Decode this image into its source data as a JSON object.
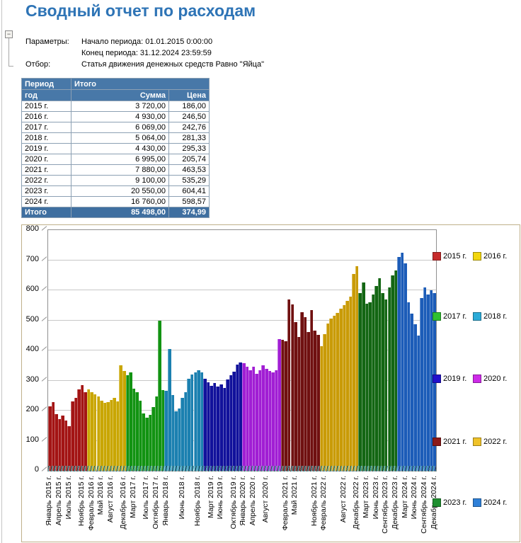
{
  "page": {
    "title": "Сводный отчет по расходам",
    "collapse_glyph": "−"
  },
  "params": {
    "label": "Параметры:",
    "line1": "Начало периода: 01.01.2015 0:00:00",
    "line2": "Конец периода: 31.12.2024 23:59:59",
    "filter_label": "Отбор:",
    "filter_value": "Статья движения денежных средств Равно \"Яйца\""
  },
  "table": {
    "header": {
      "col_period_line1": "Период",
      "col_period_line2": "год",
      "col_total": "Итого",
      "col_sum": "Сумма",
      "col_price": "Цена"
    },
    "rows": [
      [
        "2015 г.",
        "3 720,00",
        "186,00"
      ],
      [
        "2016 г.",
        "4 930,00",
        "246,50"
      ],
      [
        "2017 г.",
        "6 069,00",
        "242,76"
      ],
      [
        "2018 г.",
        "5 064,00",
        "281,33"
      ],
      [
        "2019 г.",
        "4 430,00",
        "295,33"
      ],
      [
        "2020 г.",
        "6 995,00",
        "205,74"
      ],
      [
        "2021 г.",
        "7 880,00",
        "463,53"
      ],
      [
        "2022 г.",
        "9 100,00",
        "535,29"
      ],
      [
        "2023 г.",
        "20 550,00",
        "604,41"
      ],
      [
        "2024 г.",
        "16 760,00",
        "598,57"
      ]
    ],
    "footer": {
      "label": "Итого",
      "sum": "85 498,00",
      "price": "374,99"
    }
  },
  "chart_data": {
    "type": "bar",
    "title": "",
    "xlabel": "",
    "ylabel": "",
    "ylim": [
      0,
      800
    ],
    "yticks": [
      0,
      100,
      200,
      300,
      400,
      500,
      600,
      700,
      800
    ],
    "grid": true,
    "legend_position": "right",
    "series": [
      {
        "name": "2015 г.",
        "color": "#A31414",
        "legend_color": "#C62B2B",
        "values": [
          215,
          228,
          188,
          172,
          184,
          167,
          148,
          230,
          242,
          270,
          285,
          262
        ]
      },
      {
        "name": "2016 г.",
        "color": "#C9A603",
        "legend_color": "#F2D60E",
        "values": [
          270,
          262,
          255,
          248,
          232,
          225,
          228,
          235,
          242,
          230,
          350,
          332
        ]
      },
      {
        "name": "2017 г.",
        "color": "#129312",
        "legend_color": "#30C030",
        "values": [
          318,
          328,
          272,
          262,
          232,
          190,
          176,
          186,
          212,
          246,
          500,
          268
        ]
      },
      {
        "name": "2018 г.",
        "color": "#1B80B0",
        "legend_color": "#2BABD8",
        "values": [
          266,
          405,
          252,
          198,
          208,
          242,
          262,
          305,
          320,
          327,
          334,
          327
        ]
      },
      {
        "name": "2019 г.",
        "color": "#11119B",
        "legend_color": "#2211CC",
        "values": [
          306,
          295,
          283,
          292,
          280,
          288,
          276,
          303,
          318,
          330,
          352,
          360
        ]
      },
      {
        "name": "2020 г.",
        "color": "#A11ED4",
        "legend_color": "#CE2BE8",
        "values": [
          358,
          345,
          335,
          345,
          322,
          335,
          350,
          340,
          332,
          328,
          335,
          438
        ]
      },
      {
        "name": "2021 г.",
        "color": "#701010",
        "legend_color": "#8B1A1A",
        "values": [
          435,
          430,
          570,
          553,
          495,
          445,
          528,
          510,
          462,
          533,
          466,
          452
        ]
      },
      {
        "name": "2022 г.",
        "color": "#C99B07",
        "legend_color": "#EFC229",
        "values": [
          415,
          455,
          490,
          505,
          515,
          525,
          540,
          550,
          565,
          580,
          655,
          680
        ]
      },
      {
        "name": "2023 г.",
        "color": "#136613",
        "legend_color": "#1F8F30",
        "values": [
          590,
          625,
          555,
          560,
          585,
          615,
          640,
          590,
          570,
          610,
          650,
          665
        ]
      },
      {
        "name": "2024 г.",
        "color": "#1C5CB8",
        "legend_color": "#2F80D8",
        "values": [
          710,
          725,
          690,
          560,
          523,
          487,
          450,
          575,
          610,
          585,
          600,
          590
        ]
      }
    ],
    "x_tick_labels": [
      {
        "label": "Январь 2015 г.",
        "index": 0
      },
      {
        "label": "Апрель 2015 г.",
        "index": 3
      },
      {
        "label": "Июль 2015 г.",
        "index": 6
      },
      {
        "label": "Ноябрь 2015 г.",
        "index": 10
      },
      {
        "label": "Февраль 2016 г.",
        "index": 13
      },
      {
        "label": "Май 2016 г.",
        "index": 16
      },
      {
        "label": "Август 2016 г.",
        "index": 19
      },
      {
        "label": "Декабрь 2016 г.",
        "index": 23
      },
      {
        "label": "Март 2017 г.",
        "index": 26
      },
      {
        "label": "Июль 2017 г.",
        "index": 30
      },
      {
        "label": "Октябрь 2017 г.",
        "index": 33
      },
      {
        "label": "Январь 2018 г.",
        "index": 36
      },
      {
        "label": "Июнь 2018 г.",
        "index": 41
      },
      {
        "label": "Ноябрь 2018 г.",
        "index": 46
      },
      {
        "label": "Март 2019 г.",
        "index": 50
      },
      {
        "label": "Июнь 2019 г.",
        "index": 53
      },
      {
        "label": "Октябрь 2019 г.",
        "index": 57
      },
      {
        "label": "Январь 2020 г.",
        "index": 60
      },
      {
        "label": "Апрель 2020 г.",
        "index": 63
      },
      {
        "label": "Август 2020 г.",
        "index": 67
      },
      {
        "label": "Февраль 2021 г.",
        "index": 73
      },
      {
        "label": "Май 2021 г.",
        "index": 76
      },
      {
        "label": "Ноябрь 2021 г.",
        "index": 82
      },
      {
        "label": "Февраль 2022 г.",
        "index": 85
      },
      {
        "label": "Август 2022 г.",
        "index": 91
      },
      {
        "label": "Декабрь 2022 г.",
        "index": 95
      },
      {
        "label": "Март 2023 г.",
        "index": 98
      },
      {
        "label": "Июнь 2023 г.",
        "index": 101
      },
      {
        "label": "Сентябрь 2023 г.",
        "index": 104
      },
      {
        "label": "Декабрь 2023 г.",
        "index": 107
      },
      {
        "label": "Март 2024 г.",
        "index": 110
      },
      {
        "label": "Июнь 2024 г.",
        "index": 113
      },
      {
        "label": "Сентябрь 2024 г.",
        "index": 116
      },
      {
        "label": "Декабрь 2024 г.",
        "index": 119
      }
    ]
  }
}
